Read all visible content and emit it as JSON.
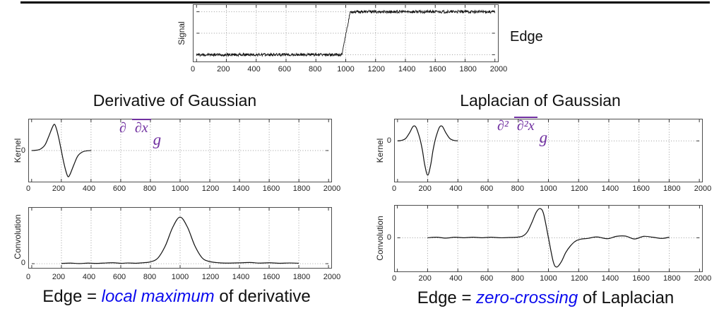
{
  "slide": {
    "edge_label": "Edge",
    "formulas": {
      "dog": {
        "numerator": "∂",
        "denominator": "∂x",
        "suffix": "g"
      },
      "log": {
        "numerator": "∂²",
        "denominator": "∂²x",
        "suffix": "g"
      }
    },
    "captions": {
      "dog": {
        "prefix": "Edge = ",
        "emphasis": "local maximum",
        "suffix": " of derivative"
      },
      "log": {
        "prefix": "Edge = ",
        "emphasis": "zero-crossing",
        "suffix": " of Laplacian"
      }
    }
  },
  "colors": {
    "formula_purple": "#7030a0",
    "emphasis_blue": "#0b0bee",
    "curve": "#141414",
    "grid": "#999999",
    "axis_box": "#4d4d4d",
    "rule_black": "#000000"
  },
  "chart_data": [
    {
      "id": "signal",
      "type": "line",
      "title": "",
      "ylabel": "Signal",
      "xlim": [
        0,
        2000
      ],
      "ylim": [
        0,
        1
      ],
      "xticks": [
        0,
        200,
        400,
        600,
        800,
        1000,
        1200,
        1400,
        1600,
        1800,
        2000
      ],
      "ygrid": [
        0.12,
        0.5,
        0.88
      ],
      "grid": true,
      "series": [
        {
          "name": "noisy step edge",
          "noise": 0.025,
          "step": 2,
          "points": [
            [
              0,
              0.12
            ],
            [
              975,
              0.12
            ],
            [
              1030,
              0.88
            ],
            [
              2000,
              0.88
            ]
          ]
        }
      ]
    },
    {
      "id": "dog_kernel",
      "type": "line",
      "title": "Derivative of Gaussian",
      "ylabel": "Kernel",
      "yzero_label": "0",
      "xlim": [
        0,
        2000
      ],
      "ylim": [
        -1,
        1
      ],
      "xticks": [
        0,
        200,
        400,
        600,
        800,
        1000,
        1200,
        1400,
        1600,
        1800,
        2000
      ],
      "ygrid": [
        0
      ],
      "grid": true,
      "series": [
        {
          "name": "derivative of Gaussian kernel",
          "smooth": true,
          "points": [
            [
              0,
              0
            ],
            [
              30,
              0.01
            ],
            [
              60,
              0.05
            ],
            [
              90,
              0.18
            ],
            [
              115,
              0.45
            ],
            [
              140,
              0.75
            ],
            [
              155,
              0.84
            ],
            [
              170,
              0.65
            ],
            [
              185,
              0.35
            ],
            [
              200,
              0
            ],
            [
              215,
              -0.35
            ],
            [
              230,
              -0.65
            ],
            [
              245,
              -0.84
            ],
            [
              260,
              -0.75
            ],
            [
              285,
              -0.45
            ],
            [
              310,
              -0.18
            ],
            [
              340,
              -0.05
            ],
            [
              370,
              -0.01
            ],
            [
              400,
              0
            ]
          ]
        }
      ]
    },
    {
      "id": "dog_conv",
      "type": "line",
      "title": "",
      "ylabel": "Convolution",
      "yzero_label": "0",
      "xlim": [
        0,
        2000
      ],
      "ylim": [
        -0.09,
        1.2
      ],
      "xticks": [
        0,
        200,
        400,
        600,
        800,
        1000,
        1200,
        1400,
        1600,
        1800,
        2000
      ],
      "ygrid": [
        0
      ],
      "grid": true,
      "series": [
        {
          "name": "signal convolved with derivative of Gaussian (local maximum at 1000)",
          "smooth": true,
          "points": [
            [
              200,
              0.005
            ],
            [
              260,
              0.012
            ],
            [
              320,
              0.004
            ],
            [
              380,
              0.012
            ],
            [
              440,
              0.006
            ],
            [
              500,
              0.015
            ],
            [
              550,
              0.02
            ],
            [
              600,
              0.008
            ],
            [
              650,
              0.015
            ],
            [
              700,
              0.01
            ],
            [
              750,
              0.02
            ],
            [
              800,
              0.04
            ],
            [
              850,
              0.12
            ],
            [
              900,
              0.38
            ],
            [
              950,
              0.78
            ],
            [
              1000,
              1.0
            ],
            [
              1050,
              0.78
            ],
            [
              1100,
              0.38
            ],
            [
              1150,
              0.12
            ],
            [
              1200,
              0.045
            ],
            [
              1260,
              0.02
            ],
            [
              1320,
              0.012
            ],
            [
              1400,
              0.018
            ],
            [
              1470,
              0.025
            ],
            [
              1540,
              0.012
            ],
            [
              1600,
              0.02
            ],
            [
              1670,
              0.01
            ],
            [
              1740,
              0.015
            ],
            [
              1800,
              0.01
            ]
          ]
        }
      ]
    },
    {
      "id": "log_kernel",
      "type": "line",
      "title": "Laplacian of Gaussian",
      "ylabel": "Kernel",
      "yzero_label": "0",
      "xlim": [
        0,
        2000
      ],
      "ylim": [
        -1.9,
        1.0
      ],
      "xticks": [
        0,
        200,
        400,
        600,
        800,
        1000,
        1200,
        1400,
        1600,
        1800,
        2000
      ],
      "ygrid": [
        0
      ],
      "grid": true,
      "series": [
        {
          "name": "Laplacian of Gaussian kernel",
          "smooth": true,
          "points": [
            [
              0,
              0
            ],
            [
              30,
              0.03
            ],
            [
              55,
              0.12
            ],
            [
              80,
              0.38
            ],
            [
              100,
              0.65
            ],
            [
              112,
              0.7
            ],
            [
              125,
              0.6
            ],
            [
              140,
              0.3
            ],
            [
              152,
              0
            ],
            [
              165,
              -0.45
            ],
            [
              180,
              -1.1
            ],
            [
              200,
              -1.6
            ],
            [
              220,
              -1.1
            ],
            [
              235,
              -0.45
            ],
            [
              248,
              0
            ],
            [
              260,
              0.3
            ],
            [
              275,
              0.6
            ],
            [
              288,
              0.7
            ],
            [
              300,
              0.65
            ],
            [
              320,
              0.38
            ],
            [
              345,
              0.12
            ],
            [
              370,
              0.03
            ],
            [
              400,
              0
            ]
          ]
        }
      ]
    },
    {
      "id": "log_conv",
      "type": "line",
      "title": "",
      "ylabel": "Convolution",
      "yzero_label": "0",
      "xlim": [
        0,
        2000
      ],
      "ylim": [
        -1.15,
        1.1
      ],
      "xticks": [
        0,
        200,
        400,
        600,
        800,
        1000,
        1200,
        1400,
        1600,
        1800,
        2000
      ],
      "ygrid": [
        0
      ],
      "grid": true,
      "series": [
        {
          "name": "signal convolved with Laplacian of Gaussian (zero-crossing at 1000)",
          "smooth": true,
          "points": [
            [
              200,
              0
            ],
            [
              260,
              0.02
            ],
            [
              320,
              -0.01
            ],
            [
              380,
              0.02
            ],
            [
              440,
              0
            ],
            [
              500,
              0.02
            ],
            [
              560,
              0
            ],
            [
              620,
              0.02
            ],
            [
              680,
              0
            ],
            [
              740,
              0.01
            ],
            [
              790,
              0.02
            ],
            [
              830,
              0.06
            ],
            [
              860,
              0.2
            ],
            [
              890,
              0.52
            ],
            [
              920,
              0.88
            ],
            [
              945,
              1.0
            ],
            [
              968,
              0.82
            ],
            [
              1000,
              0
            ],
            [
              1032,
              -0.82
            ],
            [
              1055,
              -1.0
            ],
            [
              1085,
              -0.82
            ],
            [
              1115,
              -0.5
            ],
            [
              1145,
              -0.28
            ],
            [
              1175,
              -0.13
            ],
            [
              1210,
              -0.05
            ],
            [
              1260,
              -0.02
            ],
            [
              1320,
              0.03
            ],
            [
              1390,
              -0.03
            ],
            [
              1450,
              0.05
            ],
            [
              1510,
              0.06
            ],
            [
              1570,
              -0.04
            ],
            [
              1630,
              0.05
            ],
            [
              1690,
              0.02
            ],
            [
              1750,
              -0.02
            ],
            [
              1800,
              0.02
            ]
          ]
        }
      ]
    }
  ]
}
